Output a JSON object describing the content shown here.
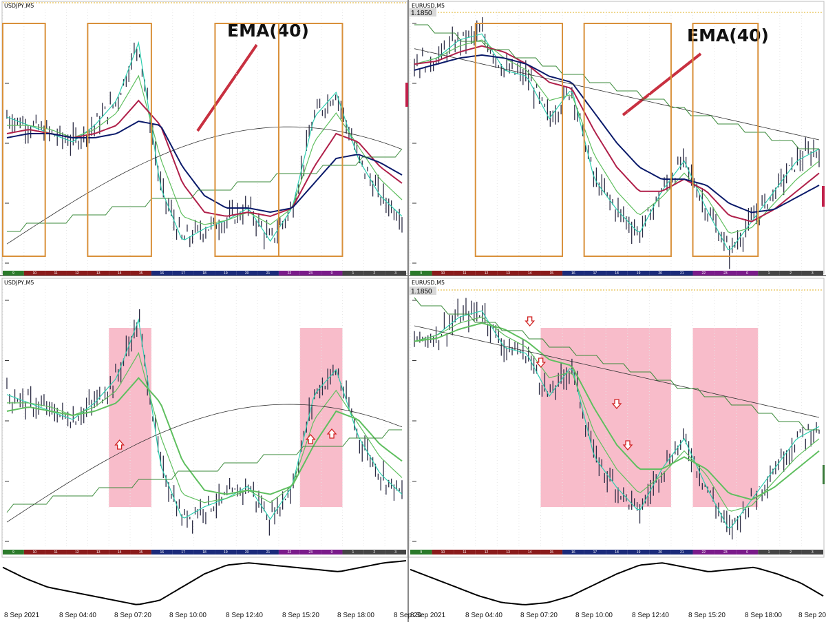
{
  "panels": [
    {
      "title": "USDJPY,M5",
      "price_label": "",
      "annotation": "EMA(40)"
    },
    {
      "title": "EURUSD,M5",
      "price_label": "1.1850",
      "annotation": "EMA(40)"
    },
    {
      "title": "USDJPY,M5",
      "price_label": "",
      "annotation": ""
    },
    {
      "title": "EURUSD,M5",
      "price_label": "1.1850",
      "annotation": ""
    }
  ],
  "hour_labels": [
    "9",
    "10",
    "11",
    "12",
    "13",
    "14",
    "15",
    "16",
    "17",
    "18",
    "19",
    "20",
    "21",
    "22",
    "23",
    "0",
    "1",
    "2",
    "3"
  ],
  "time_axis_labels": [
    "8 Sep 2021",
    "8 Sep 04:40",
    "8 Sep 07:20",
    "8 Sep 10:00",
    "8 Sep 12:40",
    "8 Sep 15:20",
    "8 Sep 18:00",
    "8 Sep 20"
  ],
  "colors": {
    "ema_short": "#2ecfb0",
    "ema_mid": "#5fbf5f",
    "ema_40": "#b0204a",
    "ema_slow": "#0a1a6a",
    "sma": "#333333",
    "step": "#3a8a3a",
    "box": "#d9903a",
    "zone": "#f5a0b4",
    "arrow": "#d02020",
    "candle": "#2c2c44"
  },
  "chart_data": [
    {
      "type": "line",
      "symbol": "USDJPY",
      "timeframe": "M5",
      "price_label": "",
      "x": [
        "9",
        "10",
        "11",
        "12",
        "13",
        "14",
        "15",
        "16",
        "17",
        "18",
        "19",
        "20",
        "21",
        "22",
        "23",
        "0",
        "1",
        "2",
        "3"
      ],
      "series": [
        {
          "values": [
            110.22,
            110.2,
            110.18,
            110.16,
            110.2,
            110.26,
            110.4,
            110.05,
            109.92,
            109.95,
            109.97,
            110.0,
            109.92,
            110.0,
            110.22,
            110.28,
            110.12,
            110.03,
            109.98
          ]
        },
        {
          "values": [
            110.2,
            110.2,
            110.19,
            110.17,
            110.19,
            110.23,
            110.32,
            110.12,
            109.98,
            109.96,
            109.97,
            109.99,
            109.96,
            110.0,
            110.16,
            110.23,
            110.15,
            110.07,
            110.02
          ]
        },
        {
          "values": [
            110.18,
            110.19,
            110.18,
            110.17,
            110.18,
            110.2,
            110.26,
            110.2,
            110.06,
            109.99,
            109.98,
            109.99,
            109.98,
            110.0,
            110.1,
            110.18,
            110.16,
            110.1,
            110.06
          ]
        },
        {
          "values": [
            110.17,
            110.18,
            110.18,
            110.17,
            110.17,
            110.18,
            110.21,
            110.2,
            110.1,
            110.03,
            110.0,
            110.0,
            109.99,
            110.0,
            110.06,
            110.12,
            110.13,
            110.11,
            110.08
          ]
        }
      ],
      "highlight_boxes": [
        [
          "9",
          "10"
        ],
        [
          "13",
          "15"
        ],
        [
          "19",
          "21"
        ],
        [
          "22",
          "0"
        ]
      ]
    },
    {
      "type": "line",
      "symbol": "EURUSD",
      "timeframe": "M5",
      "price_label": "1.1850",
      "x": [
        "9",
        "10",
        "11",
        "12",
        "13",
        "14",
        "15",
        "16",
        "17",
        "18",
        "19",
        "20",
        "21",
        "22",
        "23",
        "0",
        "1",
        "2",
        "3"
      ],
      "series": [
        {
          "values": [
            1.1838,
            1.184,
            1.1846,
            1.1848,
            1.1836,
            1.1834,
            1.182,
            1.183,
            1.18,
            1.179,
            1.1782,
            1.1796,
            1.1806,
            1.179,
            1.1776,
            1.1786,
            1.1796,
            1.1806,
            1.181
          ]
        },
        {
          "values": [
            1.1838,
            1.184,
            1.1844,
            1.1846,
            1.184,
            1.1836,
            1.1826,
            1.1828,
            1.1808,
            1.1796,
            1.1788,
            1.1794,
            1.1802,
            1.1794,
            1.1782,
            1.1784,
            1.1792,
            1.18,
            1.1806
          ]
        },
        {
          "values": [
            1.1838,
            1.1839,
            1.1842,
            1.1844,
            1.1842,
            1.1838,
            1.1832,
            1.183,
            1.1816,
            1.1804,
            1.1796,
            1.1796,
            1.18,
            1.1796,
            1.1788,
            1.1786,
            1.179,
            1.1796,
            1.1802
          ]
        },
        {
          "values": [
            1.1836,
            1.1838,
            1.184,
            1.1841,
            1.184,
            1.1838,
            1.1834,
            1.1832,
            1.1822,
            1.1812,
            1.1804,
            1.18,
            1.18,
            1.1798,
            1.1792,
            1.1789,
            1.179,
            1.1794,
            1.1798
          ]
        }
      ],
      "highlight_boxes": [
        [
          "12",
          "15"
        ],
        [
          "17",
          "20"
        ],
        [
          "22",
          "0"
        ]
      ]
    },
    {
      "type": "line",
      "symbol": "USDJPY",
      "timeframe": "M5",
      "price_label": "",
      "x": [
        "9",
        "10",
        "11",
        "12",
        "13",
        "14",
        "15",
        "16",
        "17",
        "18",
        "19",
        "20",
        "21",
        "22",
        "23",
        "0",
        "1",
        "2",
        "3"
      ],
      "series": [
        {
          "values": [
            110.22,
            110.2,
            110.18,
            110.16,
            110.2,
            110.26,
            110.4,
            110.05,
            109.92,
            109.95,
            109.97,
            110.0,
            109.92,
            110.0,
            110.22,
            110.28,
            110.12,
            110.03,
            109.98
          ]
        },
        {
          "values": [
            110.2,
            110.2,
            110.19,
            110.17,
            110.19,
            110.23,
            110.32,
            110.12,
            109.98,
            109.96,
            109.97,
            109.99,
            109.96,
            110.0,
            110.16,
            110.23,
            110.15,
            110.07,
            110.02
          ]
        },
        {
          "values": [
            110.18,
            110.19,
            110.18,
            110.17,
            110.18,
            110.2,
            110.26,
            110.2,
            110.06,
            109.99,
            109.98,
            109.99,
            109.98,
            110.0,
            110.1,
            110.18,
            110.16,
            110.1,
            110.06
          ]
        }
      ],
      "highlight_zones": [
        [
          "14",
          "15"
        ],
        [
          "23",
          "0"
        ]
      ],
      "arrows_up": [
        "14",
        "23",
        "0"
      ]
    },
    {
      "type": "line",
      "symbol": "EURUSD",
      "timeframe": "M5",
      "price_label": "1.1850",
      "x": [
        "9",
        "10",
        "11",
        "12",
        "13",
        "14",
        "15",
        "16",
        "17",
        "18",
        "19",
        "20",
        "21",
        "22",
        "23",
        "0",
        "1",
        "2",
        "3"
      ],
      "series": [
        {
          "values": [
            1.1838,
            1.184,
            1.1846,
            1.1848,
            1.1836,
            1.1834,
            1.182,
            1.183,
            1.18,
            1.179,
            1.1782,
            1.1796,
            1.1806,
            1.179,
            1.1776,
            1.1786,
            1.1796,
            1.1806,
            1.181
          ]
        },
        {
          "values": [
            1.1838,
            1.184,
            1.1844,
            1.1846,
            1.184,
            1.1836,
            1.1826,
            1.1828,
            1.1808,
            1.1796,
            1.1788,
            1.1794,
            1.1802,
            1.1794,
            1.1782,
            1.1784,
            1.1792,
            1.18,
            1.1806
          ]
        },
        {
          "values": [
            1.1838,
            1.1839,
            1.1842,
            1.1844,
            1.1842,
            1.1838,
            1.1832,
            1.183,
            1.1816,
            1.1804,
            1.1796,
            1.1796,
            1.18,
            1.1796,
            1.1788,
            1.1786,
            1.179,
            1.1796,
            1.1802
          ]
        }
      ],
      "highlight_zones": [
        [
          "15",
          "16"
        ],
        [
          "17",
          "20"
        ],
        [
          "22",
          "0"
        ]
      ],
      "arrows_down": [
        "14",
        "14",
        "18",
        "18"
      ]
    },
    {
      "type": "line",
      "indicator": "oscillator",
      "x": [
        "9",
        "10",
        "11",
        "12",
        "13",
        "14",
        "15",
        "16",
        "17",
        "18",
        "19",
        "20",
        "21",
        "22",
        "23",
        "0",
        "1",
        "2",
        "3"
      ],
      "values": [
        0.85,
        0.6,
        0.4,
        0.3,
        0.2,
        0.1,
        0.0,
        0.1,
        0.4,
        0.7,
        0.9,
        0.95,
        0.9,
        0.85,
        0.8,
        0.75,
        0.85,
        0.95,
        1.0
      ]
    },
    {
      "type": "line",
      "indicator": "oscillator",
      "x": [
        "9",
        "10",
        "11",
        "12",
        "13",
        "14",
        "15",
        "16",
        "17",
        "18",
        "19",
        "20",
        "21",
        "22",
        "23",
        "0",
        "1",
        "2",
        "3"
      ],
      "values": [
        0.8,
        0.6,
        0.4,
        0.2,
        0.05,
        0.0,
        0.05,
        0.2,
        0.45,
        0.7,
        0.9,
        0.95,
        0.85,
        0.75,
        0.8,
        0.85,
        0.7,
        0.5,
        0.2
      ]
    }
  ]
}
